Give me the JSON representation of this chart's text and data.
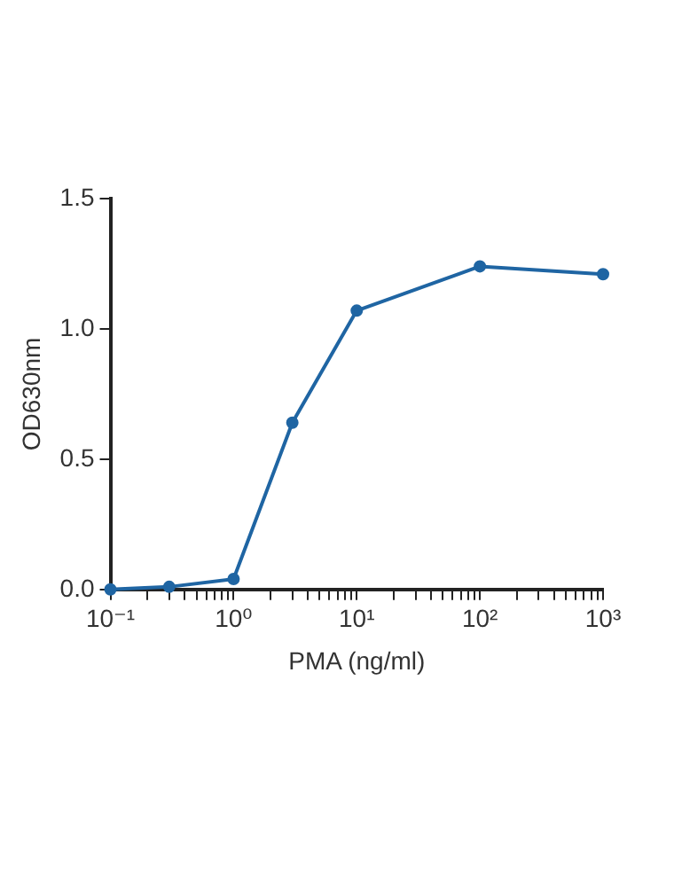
{
  "chart_data": {
    "type": "line",
    "xlabel": "PMA (ng/ml)",
    "ylabel": "OD630nm",
    "log": "x",
    "marker": "circle",
    "line_style": "solid",
    "grid": false,
    "legend": false,
    "x": [
      0.1,
      0.3,
      1,
      3,
      10,
      100,
      1000
    ],
    "series": [
      {
        "color": "#1f65a3",
        "values": [
          0.0,
          0.01,
          0.04,
          0.64,
          1.07,
          1.24,
          1.21
        ]
      }
    ],
    "xlim": [
      0.1,
      1000
    ],
    "xticks": [
      {
        "value": 0.1,
        "label": "10⁻¹"
      },
      {
        "value": 0.2,
        "label": null
      },
      {
        "value": 0.3,
        "label": null
      },
      {
        "value": 0.4,
        "label": null
      },
      {
        "value": 0.5,
        "label": null
      },
      {
        "value": 0.6,
        "label": null
      },
      {
        "value": 0.7,
        "label": null
      },
      {
        "value": 0.8,
        "label": null
      },
      {
        "value": 0.9,
        "label": null
      },
      {
        "value": 1,
        "label": "10⁰"
      },
      {
        "value": 2,
        "label": null
      },
      {
        "value": 3,
        "label": null
      },
      {
        "value": 4,
        "label": null
      },
      {
        "value": 5,
        "label": null
      },
      {
        "value": 6,
        "label": null
      },
      {
        "value": 7,
        "label": null
      },
      {
        "value": 8,
        "label": null
      },
      {
        "value": 9,
        "label": null
      },
      {
        "value": 10,
        "label": "10¹"
      },
      {
        "value": 20,
        "label": null
      },
      {
        "value": 30,
        "label": null
      },
      {
        "value": 40,
        "label": null
      },
      {
        "value": 50,
        "label": null
      },
      {
        "value": 60,
        "label": null
      },
      {
        "value": 70,
        "label": null
      },
      {
        "value": 80,
        "label": null
      },
      {
        "value": 90,
        "label": null
      },
      {
        "value": 100,
        "label": "10²"
      },
      {
        "value": 200,
        "label": null
      },
      {
        "value": 300,
        "label": null
      },
      {
        "value": 400,
        "label": null
      },
      {
        "value": 500,
        "label": null
      },
      {
        "value": 600,
        "label": null
      },
      {
        "value": 700,
        "label": null
      },
      {
        "value": 800,
        "label": null
      },
      {
        "value": 900,
        "label": null
      },
      {
        "value": 1000,
        "label": "10³"
      }
    ],
    "ylim": [
      0,
      1.5
    ],
    "yticks": [
      {
        "value": 0,
        "label": "0.0"
      },
      {
        "value": 0.5,
        "label": "0.5"
      },
      {
        "value": 1,
        "label": "1.0"
      },
      {
        "value": 1.5,
        "label": "1.5"
      }
    ]
  }
}
